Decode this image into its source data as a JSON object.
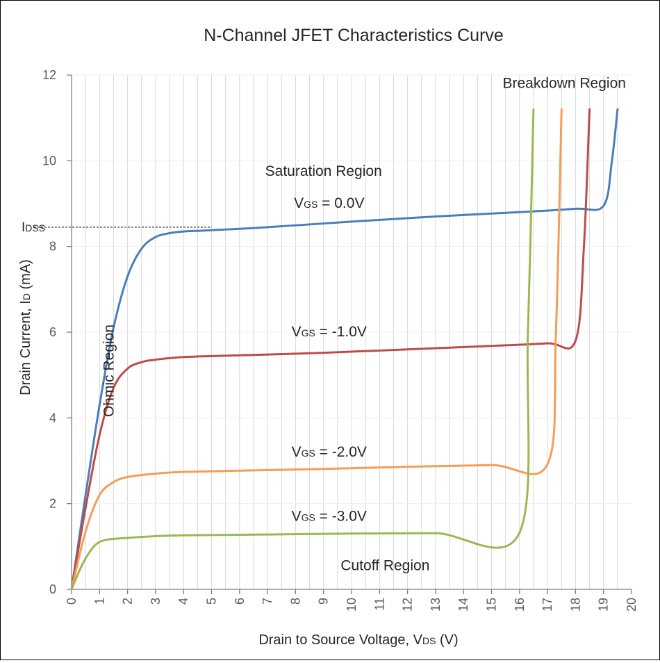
{
  "chart_data": {
    "type": "line",
    "title": "N-Channel JFET Characteristics Curve",
    "xlabel": {
      "main": "Drain to Source Voltage, V",
      "sub": "DS",
      "tail": " (V)"
    },
    "ylabel": {
      "main": "Drain Current, I",
      "sub": "D",
      "tail": " (mA)"
    },
    "xlim": [
      0,
      20
    ],
    "ylim": [
      0,
      12
    ],
    "x_ticks": [
      "0",
      "1",
      "2",
      "3",
      "4",
      "5",
      "6",
      "7",
      "8",
      "9",
      "10",
      "11",
      "12",
      "13",
      "14",
      "15",
      "16",
      "17",
      "18",
      "19",
      "20"
    ],
    "y_ticks": [
      "0",
      "2",
      "4",
      "6",
      "8",
      "10",
      "12"
    ],
    "grid": "vertical-major",
    "series": [
      {
        "name": "VGS = 0.0V",
        "label": {
          "v": "V",
          "sub": "GS",
          "rest": " = 0.0V",
          "x": 9.2,
          "y": 8.9
        },
        "color": "#4a7ebb",
        "points": [
          [
            0,
            0
          ],
          [
            0.5,
            2.2
          ],
          [
            1,
            4.3
          ],
          [
            1.5,
            6.1
          ],
          [
            2,
            7.3
          ],
          [
            2.5,
            7.95
          ],
          [
            3,
            8.22
          ],
          [
            3.5,
            8.31
          ],
          [
            4,
            8.35
          ],
          [
            5,
            8.38
          ],
          [
            7,
            8.45
          ],
          [
            10,
            8.58
          ],
          [
            13,
            8.7
          ],
          [
            16,
            8.8
          ],
          [
            18,
            8.88
          ],
          [
            19,
            8.95
          ],
          [
            19.3,
            10.0
          ],
          [
            19.5,
            11.2
          ]
        ]
      },
      {
        "name": "VGS = -1.0V",
        "label": {
          "v": "V",
          "sub": "GS",
          "rest": " = -1.0V",
          "x": 9.2,
          "y": 5.9
        },
        "color": "#be4b48",
        "points": [
          [
            0,
            0
          ],
          [
            0.5,
            1.9
          ],
          [
            1,
            3.6
          ],
          [
            1.5,
            4.7
          ],
          [
            2,
            5.15
          ],
          [
            2.5,
            5.3
          ],
          [
            3,
            5.36
          ],
          [
            4,
            5.42
          ],
          [
            6,
            5.46
          ],
          [
            9,
            5.52
          ],
          [
            12,
            5.6
          ],
          [
            15,
            5.68
          ],
          [
            17,
            5.74
          ],
          [
            18,
            5.8
          ],
          [
            18.3,
            8.0
          ],
          [
            18.5,
            11.2
          ]
        ]
      },
      {
        "name": "VGS = -2.0V",
        "label": {
          "v": "V",
          "sub": "GS",
          "rest": " = -2.0V",
          "x": 9.2,
          "y": 3.1
        },
        "color": "#f59d56",
        "points": [
          [
            0,
            0
          ],
          [
            0.5,
            1.35
          ],
          [
            1,
            2.2
          ],
          [
            1.5,
            2.5
          ],
          [
            2,
            2.62
          ],
          [
            3,
            2.7
          ],
          [
            4,
            2.74
          ],
          [
            6,
            2.77
          ],
          [
            9,
            2.81
          ],
          [
            12,
            2.86
          ],
          [
            15,
            2.9
          ],
          [
            17,
            2.92
          ],
          [
            17.3,
            6.0
          ],
          [
            17.5,
            11.2
          ]
        ]
      },
      {
        "name": "VGS = -3.0V",
        "label": {
          "v": "V",
          "sub": "GS",
          "rest": " = -3.0V",
          "x": 9.2,
          "y": 1.6
        },
        "color": "#98b954",
        "points": [
          [
            0,
            0
          ],
          [
            0.4,
            0.6
          ],
          [
            0.8,
            1.0
          ],
          [
            1.2,
            1.15
          ],
          [
            2,
            1.2
          ],
          [
            3,
            1.24
          ],
          [
            4,
            1.26
          ],
          [
            7,
            1.28
          ],
          [
            10,
            1.3
          ],
          [
            13,
            1.31
          ],
          [
            16,
            1.32
          ],
          [
            16.3,
            6.0
          ],
          [
            16.5,
            11.2
          ]
        ]
      }
    ],
    "annotations": [
      {
        "text": "Saturation Region",
        "x": 9.0,
        "y": 9.65,
        "anchor": "middle",
        "rotate": 0
      },
      {
        "text": "Breakdown Region",
        "x": 19.8,
        "y": 11.7,
        "anchor": "end",
        "rotate": 0
      },
      {
        "text": "Cutoff Region",
        "x": 11.2,
        "y": 0.45,
        "anchor": "middle",
        "rotate": 0
      },
      {
        "text": "Ohmic Region",
        "x": 1.5,
        "y": 5.1,
        "anchor": "middle",
        "rotate": -90
      }
    ],
    "idss": {
      "main": "I",
      "sub": "DSS",
      "value": 8.45,
      "x_end": 5.0
    }
  }
}
